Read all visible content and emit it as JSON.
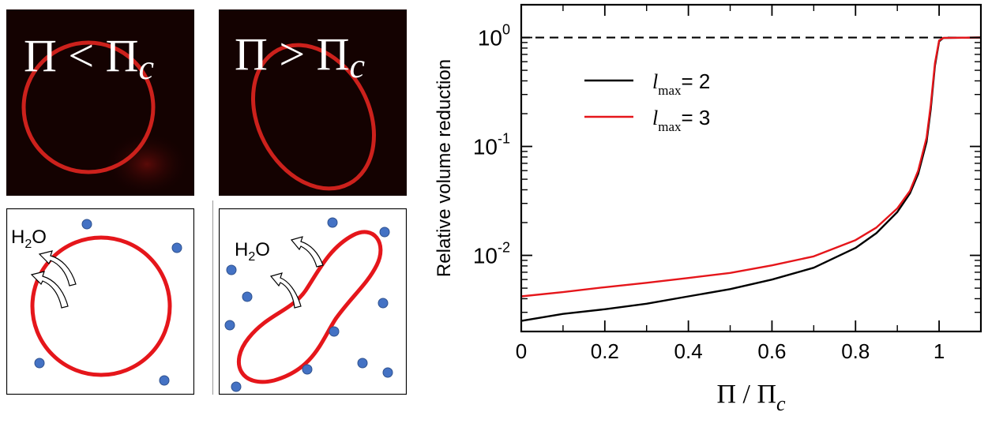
{
  "panels": {
    "photo_left_label": "Π < Π",
    "photo_left_sub": "c",
    "photo_right_label": "Π > Π",
    "photo_right_sub": "c",
    "water_main": "H",
    "water_sub": "2",
    "water_end": "O"
  },
  "colors": {
    "membrane": "#e5161b",
    "particle": "#4472c4",
    "series_lmax2": "#000000",
    "series_lmax3": "#e5161b"
  },
  "chart_data": {
    "type": "line",
    "title": "",
    "xlabel_main": "Π / Π",
    "xlabel_sub": "c",
    "ylabel": "Relative volume reduction",
    "xlim": [
      0,
      1.1
    ],
    "ylim": [
      0.002,
      2
    ],
    "yscale": "log",
    "x_ticks": [
      0,
      0.2,
      0.4,
      0.6,
      0.8,
      1
    ],
    "x_tick_labels": [
      "0",
      "0.2",
      "0.4",
      "0.6",
      "0.8",
      "1"
    ],
    "y_ticks": [
      0.01,
      0.1,
      1
    ],
    "y_tick_labels": [
      {
        "base": "10",
        "exp": "-2"
      },
      {
        "base": "10",
        "exp": "-1"
      },
      {
        "base": "10",
        "exp": "0"
      }
    ],
    "reference_line": {
      "y": 1,
      "style": "dashed"
    },
    "legend": {
      "position": "top-left",
      "entries": [
        {
          "symbol": "l",
          "sub": "max",
          "text": "= 2"
        },
        {
          "symbol": "l",
          "sub": "max",
          "text": "= 3"
        }
      ]
    },
    "series": [
      {
        "x": [
          0,
          0.1,
          0.2,
          0.3,
          0.4,
          0.5,
          0.6,
          0.7,
          0.8,
          0.85,
          0.9,
          0.93,
          0.95,
          0.97,
          0.98,
          0.99,
          1.0,
          1.01,
          1.1
        ],
        "y": [
          0.0025,
          0.0029,
          0.0032,
          0.0036,
          0.0042,
          0.0049,
          0.006,
          0.0077,
          0.0117,
          0.016,
          0.025,
          0.037,
          0.056,
          0.11,
          0.22,
          0.55,
          0.92,
          0.99,
          1.0
        ]
      },
      {
        "x": [
          0,
          0.1,
          0.2,
          0.3,
          0.4,
          0.5,
          0.6,
          0.7,
          0.8,
          0.85,
          0.9,
          0.93,
          0.95,
          0.97,
          0.98,
          0.99,
          1.0,
          1.01,
          1.1
        ],
        "y": [
          0.0042,
          0.0046,
          0.0051,
          0.0056,
          0.0062,
          0.0069,
          0.0081,
          0.0098,
          0.0138,
          0.018,
          0.027,
          0.039,
          0.06,
          0.12,
          0.24,
          0.58,
          0.94,
          0.99,
          1.0
        ]
      }
    ]
  }
}
